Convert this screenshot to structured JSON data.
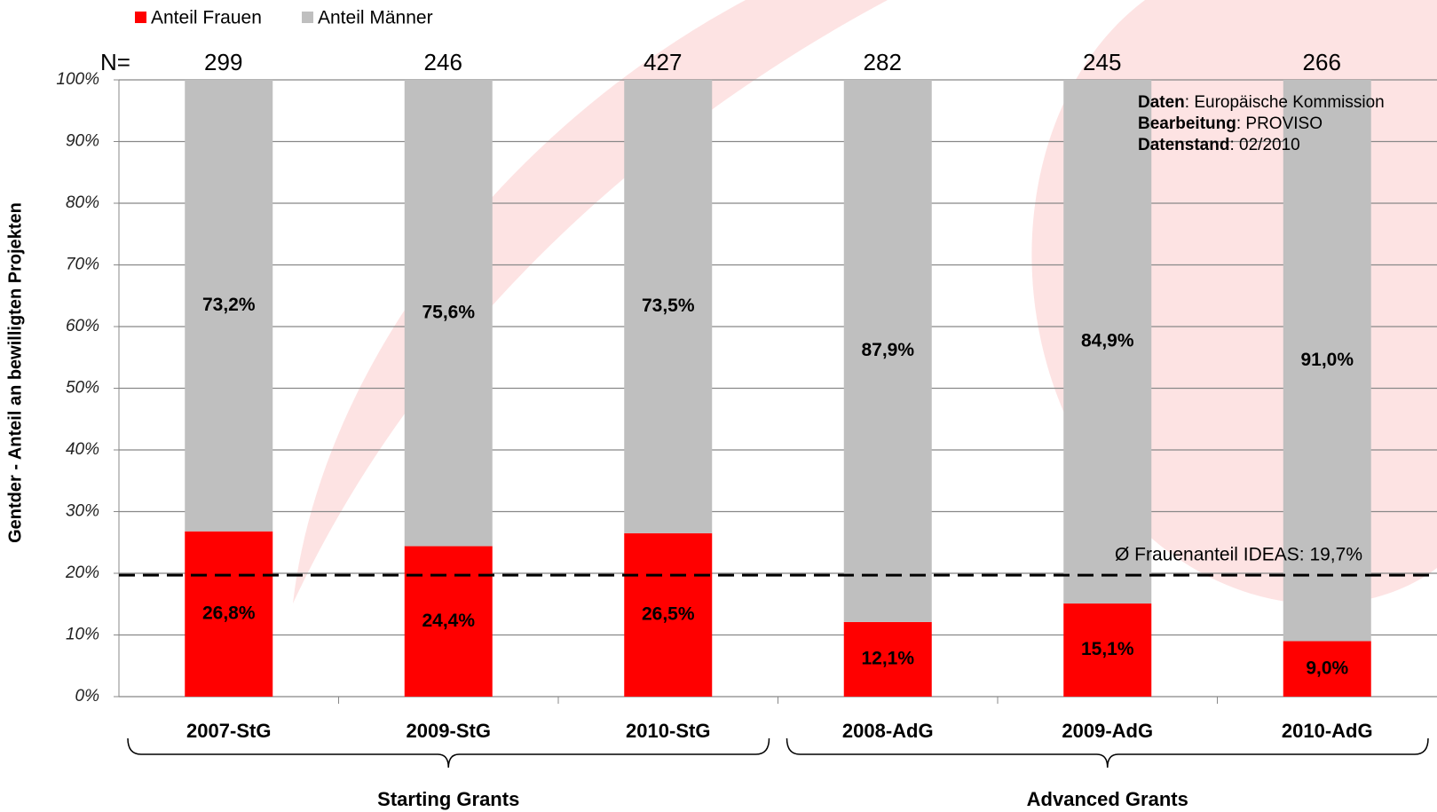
{
  "chart_data": {
    "type": "stacked_bar",
    "y_label": "Gentder - Anteil an bewilligten Projekten",
    "categories": [
      "2007-StG",
      "2009-StG",
      "2010-StG",
      "2008-AdG",
      "2009-AdG",
      "2010-AdG"
    ],
    "series": [
      {
        "name": "Anteil Frauen",
        "color": "#ff0000",
        "values": [
          26.8,
          24.4,
          26.5,
          12.1,
          15.1,
          9.0
        ],
        "value_labels": [
          "26,8%",
          "24,4%",
          "26,5%",
          "12,1%",
          "15,1%",
          "9,0%"
        ]
      },
      {
        "name": "Anteil Männer",
        "color": "#bfbfbf",
        "values": [
          73.2,
          75.6,
          73.5,
          87.9,
          84.9,
          91.0
        ],
        "value_labels": [
          "73,2%",
          "75,6%",
          "73,5%",
          "87,9%",
          "84,9%",
          "91,0%"
        ]
      }
    ],
    "ylim": [
      0,
      100
    ],
    "yticks": [
      {
        "value": 0,
        "label": "0%"
      },
      {
        "value": 10,
        "label": "10%"
      },
      {
        "value": 20,
        "label": "20%"
      },
      {
        "value": 30,
        "label": "30%"
      },
      {
        "value": 40,
        "label": "40%"
      },
      {
        "value": 50,
        "label": "50%"
      },
      {
        "value": 60,
        "label": "60%"
      },
      {
        "value": 70,
        "label": "70%"
      },
      {
        "value": 80,
        "label": "80%"
      },
      {
        "value": 90,
        "label": "90%"
      },
      {
        "value": 100,
        "label": "100%"
      }
    ],
    "grid": true,
    "n_label": "N=",
    "n_values": [
      299,
      246,
      427,
      282,
      245,
      266
    ],
    "reference_line": {
      "value": 19.7,
      "label": "Ø Frauenanteil IDEAS: 19,7%"
    },
    "groups": [
      "Starting Grants",
      "Advanced Grants"
    ],
    "source": [
      {
        "key": "Daten",
        "text": ": Europäische Kommission"
      },
      {
        "key": "Bearbeitung",
        "text": ": PROVISO"
      },
      {
        "key": "Datenstand",
        "text": ": 02/2010"
      }
    ]
  }
}
